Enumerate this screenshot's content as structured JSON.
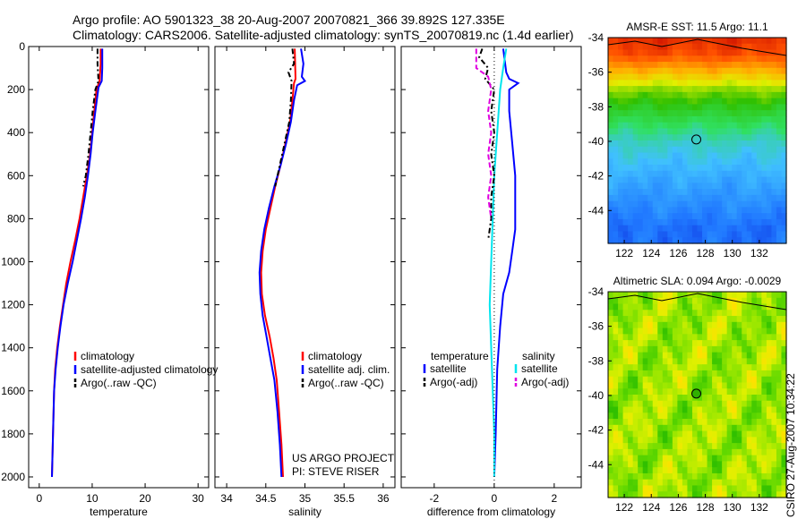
{
  "header": {
    "line1": "Argo profile: AO 5901323_38 20-Aug-2007 20070821_366 39.892S 127.335E",
    "line2": "Climatology: CARS2006. Satellite-adjusted climatology: synTS_20070819.nc (1.4d earlier)"
  },
  "credit": "CSIRO 27-Aug-2007 10:34:22",
  "colors": {
    "red": "#ff0000",
    "blue": "#0000ff",
    "black": "#000000",
    "cyan": "#00e5ee",
    "magenta": "#e000e0"
  },
  "chart_data": [
    {
      "type": "line",
      "id": "temperature",
      "xlabel": "temperature",
      "xlim": [
        -2,
        32
      ],
      "xticks": [
        "0",
        "10",
        "20",
        "30"
      ],
      "xtick_values": [
        0,
        10,
        20,
        30
      ],
      "ylim": [
        0,
        2050
      ],
      "yticks": [
        "0",
        "200",
        "400",
        "600",
        "800",
        "1000",
        "1200",
        "1400",
        "1600",
        "1800",
        "2000"
      ],
      "ytick_values": [
        0,
        200,
        400,
        600,
        800,
        1000,
        1200,
        1400,
        1600,
        1800,
        2000
      ],
      "legend": [
        "climatology",
        "satellite-adjusted climatology",
        "Argo(..raw -QC)"
      ],
      "series": [
        {
          "name": "climatology",
          "color": "red",
          "dash": "",
          "width": 2,
          "points": [
            [
              11.6,
              10
            ],
            [
              11.6,
              80
            ],
            [
              11.4,
              160
            ],
            [
              10.8,
              200
            ],
            [
              10.4,
              300
            ],
            [
              10.0,
              400
            ],
            [
              9.6,
              500
            ],
            [
              9.0,
              600
            ],
            [
              8.3,
              700
            ],
            [
              7.6,
              800
            ],
            [
              6.8,
              900
            ],
            [
              5.9,
              1000
            ],
            [
              5.1,
              1100
            ],
            [
              4.5,
              1200
            ],
            [
              3.9,
              1300
            ],
            [
              3.4,
              1400
            ],
            [
              3.0,
              1500
            ],
            [
              2.8,
              1600
            ],
            [
              2.6,
              1800
            ],
            [
              2.4,
              2000
            ]
          ]
        },
        {
          "name": "satellite-adjusted climatology",
          "color": "blue",
          "dash": "",
          "width": 2,
          "points": [
            [
              11.9,
              10
            ],
            [
              11.9,
              100
            ],
            [
              11.8,
              160
            ],
            [
              11.2,
              190
            ],
            [
              10.6,
              300
            ],
            [
              10.1,
              400
            ],
            [
              9.7,
              500
            ],
            [
              9.2,
              600
            ],
            [
              8.6,
              700
            ],
            [
              7.9,
              800
            ],
            [
              7.1,
              900
            ],
            [
              6.3,
              1000
            ],
            [
              5.4,
              1100
            ],
            [
              4.6,
              1200
            ],
            [
              4.0,
              1300
            ],
            [
              3.5,
              1400
            ],
            [
              3.1,
              1500
            ],
            [
              2.8,
              1600
            ],
            [
              2.6,
              1800
            ],
            [
              2.4,
              2000
            ]
          ]
        },
        {
          "name": "Argo(..raw -QC)",
          "color": "black",
          "dash": "6,3,2,3",
          "width": 2,
          "points": [
            [
              11.0,
              10
            ],
            [
              11.0,
              80
            ],
            [
              11.2,
              160
            ],
            [
              10.6,
              200
            ],
            [
              10.1,
              300
            ],
            [
              9.7,
              400
            ],
            [
              9.3,
              500
            ],
            [
              8.8,
              600
            ],
            [
              8.3,
              650
            ]
          ]
        }
      ]
    },
    {
      "type": "line",
      "id": "salinity",
      "xlabel": "salinity",
      "xlim": [
        33.85,
        36.15
      ],
      "xticks": [
        "34",
        "34.5",
        "35",
        "35.5",
        "36"
      ],
      "xtick_values": [
        34,
        34.5,
        35,
        35.5,
        36
      ],
      "ylim": [
        0,
        2050
      ],
      "legend": [
        "climatology",
        "satellite adj. clim.",
        "Argo(..raw -QC)"
      ],
      "annotation": [
        "US ARGO PROJECT",
        "PI: STEVE RISER"
      ],
      "series": [
        {
          "name": "climatology",
          "color": "red",
          "dash": "",
          "width": 2,
          "points": [
            [
              34.87,
              10
            ],
            [
              34.88,
              150
            ],
            [
              34.86,
              170
            ],
            [
              34.84,
              250
            ],
            [
              34.81,
              350
            ],
            [
              34.75,
              450
            ],
            [
              34.69,
              550
            ],
            [
              34.62,
              650
            ],
            [
              34.56,
              750
            ],
            [
              34.5,
              850
            ],
            [
              34.46,
              950
            ],
            [
              34.44,
              1050
            ],
            [
              34.45,
              1150
            ],
            [
              34.49,
              1250
            ],
            [
              34.55,
              1350
            ],
            [
              34.6,
              1450
            ],
            [
              34.64,
              1550
            ],
            [
              34.67,
              1700
            ],
            [
              34.7,
              1850
            ],
            [
              34.72,
              2000
            ]
          ]
        },
        {
          "name": "satellite adj. clim.",
          "color": "blue",
          "dash": "",
          "width": 2,
          "points": [
            [
              34.95,
              10
            ],
            [
              34.98,
              80
            ],
            [
              34.96,
              140
            ],
            [
              35.0,
              160
            ],
            [
              34.9,
              180
            ],
            [
              34.86,
              250
            ],
            [
              34.82,
              350
            ],
            [
              34.76,
              450
            ],
            [
              34.69,
              550
            ],
            [
              34.61,
              650
            ],
            [
              34.54,
              750
            ],
            [
              34.48,
              850
            ],
            [
              34.44,
              950
            ],
            [
              34.42,
              1050
            ],
            [
              34.43,
              1150
            ],
            [
              34.46,
              1250
            ],
            [
              34.51,
              1350
            ],
            [
              34.56,
              1450
            ],
            [
              34.61,
              1550
            ],
            [
              34.65,
              1700
            ],
            [
              34.68,
              1850
            ],
            [
              34.7,
              2000
            ]
          ]
        },
        {
          "name": "Argo(..raw -QC)",
          "color": "black",
          "dash": "6,3,2,3",
          "width": 2,
          "points": [
            [
              34.84,
              10
            ],
            [
              34.86,
              80
            ],
            [
              34.79,
              120
            ],
            [
              34.83,
              160
            ],
            [
              34.82,
              250
            ],
            [
              34.8,
              350
            ],
            [
              34.74,
              450
            ],
            [
              34.68,
              550
            ],
            [
              34.62,
              650
            ]
          ]
        }
      ]
    },
    {
      "type": "line",
      "id": "difference",
      "xlabel": "difference from climatology",
      "xlim": [
        -3.1,
        2.9
      ],
      "xticks": [
        "-2",
        "0",
        "2"
      ],
      "xtick_values": [
        -2,
        0,
        2
      ],
      "ylim": [
        0,
        2050
      ],
      "legend_left_title": "temperature",
      "legend_right_title": "salinity",
      "legend_left": [
        "satellite",
        "Argo(-adj)"
      ],
      "legend_right": [
        "satellite",
        "Argo(-adj)"
      ],
      "series": [
        {
          "name": "temperature satellite",
          "color": "blue",
          "dash": "",
          "width": 2,
          "points": [
            [
              0.3,
              10
            ],
            [
              0.4,
              120
            ],
            [
              0.5,
              150
            ],
            [
              0.8,
              170
            ],
            [
              0.5,
              200
            ],
            [
              0.5,
              300
            ],
            [
              0.6,
              450
            ],
            [
              0.7,
              600
            ],
            [
              0.7,
              750
            ],
            [
              0.7,
              850
            ],
            [
              0.6,
              950
            ],
            [
              0.5,
              1050
            ],
            [
              0.3,
              1150
            ],
            [
              0.2,
              1300
            ],
            [
              0.1,
              1500
            ],
            [
              0.05,
              1800
            ],
            [
              0.0,
              2000
            ]
          ]
        },
        {
          "name": "salinity satellite",
          "color": "cyan",
          "dash": "",
          "width": 2,
          "points": [
            [
              0.4,
              10
            ],
            [
              0.3,
              100
            ],
            [
              0.2,
              200
            ],
            [
              0.1,
              400
            ],
            [
              0.0,
              600
            ],
            [
              -0.05,
              800
            ],
            [
              -0.1,
              1000
            ],
            [
              -0.15,
              1200
            ],
            [
              -0.1,
              1400
            ],
            [
              -0.05,
              1600
            ],
            [
              0.0,
              1800
            ],
            [
              0.0,
              2000
            ]
          ]
        },
        {
          "name": "temperature Argo(-adj)",
          "color": "black",
          "dash": "6,3,2,3",
          "width": 2,
          "points": [
            [
              -0.4,
              10
            ],
            [
              -0.5,
              50
            ],
            [
              -0.2,
              100
            ],
            [
              -0.3,
              150
            ],
            [
              0.0,
              200
            ],
            [
              -0.1,
              300
            ],
            [
              0.0,
              400
            ],
            [
              -0.1,
              500
            ],
            [
              0.0,
              600
            ],
            [
              -0.1,
              700
            ],
            [
              -0.1,
              800
            ],
            [
              -0.2,
              900
            ]
          ]
        },
        {
          "name": "salinity Argo(-adj)",
          "color": "magenta",
          "dash": "6,3",
          "width": 2,
          "points": [
            [
              -0.6,
              10
            ],
            [
              -0.6,
              100
            ],
            [
              -0.2,
              140
            ],
            [
              -0.1,
              200
            ],
            [
              -0.2,
              300
            ],
            [
              -0.1,
              400
            ],
            [
              -0.2,
              500
            ],
            [
              -0.1,
              600
            ],
            [
              -0.2,
              700
            ],
            [
              -0.1,
              800
            ]
          ]
        },
        {
          "name": "zero reference",
          "color": "black",
          "dash": "1,3",
          "width": 1,
          "points": [
            [
              0,
              0
            ],
            [
              0,
              2050
            ]
          ]
        }
      ]
    },
    {
      "type": "heatmap",
      "id": "sst-map",
      "title": "AMSR-E SST: 11.5 Argo: 11.1",
      "xticks": [
        "122",
        "124",
        "126",
        "128",
        "130",
        "132"
      ],
      "xtick_values": [
        122,
        124,
        126,
        128,
        130,
        132
      ],
      "yticks": [
        "-34",
        "-36",
        "-38",
        "-40",
        "-42",
        "-44"
      ],
      "ytick_values": [
        -34,
        -36,
        -38,
        -40,
        -42,
        -44
      ],
      "xlim": [
        120.8,
        134.0
      ],
      "ylim": [
        -45.9,
        -34.0
      ],
      "marker": [
        127.335,
        -39.892
      ],
      "colormap": [
        "#0000c8",
        "#2078ff",
        "#40c0ff",
        "#30e060",
        "#30c000",
        "#e0f000",
        "#ffb000",
        "#ff5000",
        "#c00000"
      ],
      "value_range": [
        8,
        20
      ],
      "rows_by_latitude": [
        [
          -34,
          19.2
        ],
        [
          -35,
          18.6
        ],
        [
          -36,
          16.8
        ],
        [
          -37,
          14.8
        ],
        [
          -38,
          13.6
        ],
        [
          -39,
          12.6
        ],
        [
          -40,
          11.6
        ],
        [
          -41,
          11.1
        ],
        [
          -42,
          10.6
        ],
        [
          -43,
          10.2
        ],
        [
          -44,
          9.8
        ],
        [
          -45,
          9.4
        ]
      ]
    },
    {
      "type": "heatmap",
      "id": "sla-map",
      "title": "Altimetric SLA: 0.094 Argo: -0.0029",
      "xticks": [
        "122",
        "124",
        "126",
        "128",
        "130",
        "132"
      ],
      "xtick_values": [
        122,
        124,
        126,
        128,
        130,
        132
      ],
      "yticks": [
        "-34",
        "-36",
        "-38",
        "-40",
        "-42",
        "-44"
      ],
      "ytick_values": [
        -34,
        -36,
        -38,
        -40,
        -42,
        -44
      ],
      "xlim": [
        120.8,
        134.0
      ],
      "ylim": [
        -45.9,
        -34.0
      ],
      "marker": [
        127.335,
        -39.892
      ],
      "colormap": [
        "#30c000",
        "#60d800",
        "#a0e800",
        "#e0f000",
        "#ffe000"
      ],
      "value_range": [
        -0.2,
        0.2
      ]
    }
  ]
}
